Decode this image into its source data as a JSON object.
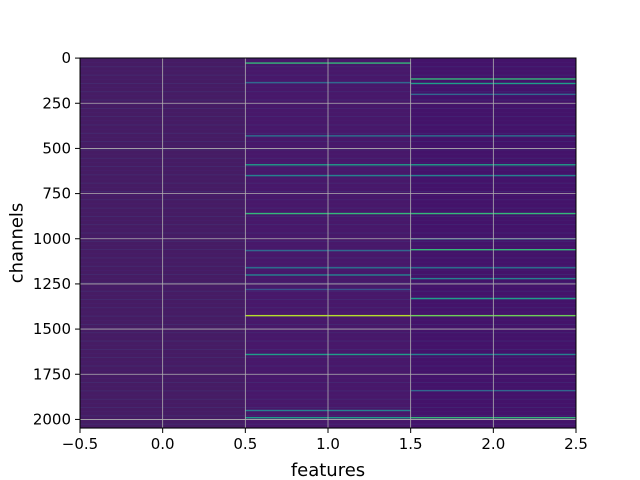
{
  "chart_data": {
    "type": "heatmap",
    "title": "",
    "xlabel": "features",
    "ylabel": "channels",
    "xlim": [
      -0.5,
      2.5
    ],
    "ylim": [
      2047.5,
      -0.5
    ],
    "y_inverted": true,
    "grid": true,
    "columns": [
      0,
      1,
      2
    ],
    "rows": 2048,
    "x_ticks": [
      -0.5,
      0.0,
      0.5,
      1.0,
      1.5,
      2.0,
      2.5
    ],
    "x_tick_labels": [
      "−0.5",
      "0.0",
      "0.5",
      "1.0",
      "1.5",
      "2.0",
      "2.5"
    ],
    "y_ticks": [
      0,
      250,
      500,
      750,
      1000,
      1250,
      1500,
      1750,
      2000
    ],
    "y_tick_labels": [
      "0",
      "250",
      "500",
      "750",
      "1000",
      "1250",
      "1500",
      "1750",
      "2000"
    ],
    "colormap": "viridis",
    "background_color": "#46206a",
    "column_base_colors": [
      "#461c64",
      "#48186a",
      "#44136a"
    ],
    "bright_rows": [
      {
        "col": 1,
        "channel": 27,
        "color": "#35b779"
      },
      {
        "col": 1,
        "channel": 135,
        "color": "#31688e"
      },
      {
        "col": 1,
        "channel": 430,
        "color": "#2c728e"
      },
      {
        "col": 1,
        "channel": 590,
        "color": "#1f9e89"
      },
      {
        "col": 1,
        "channel": 650,
        "color": "#26828e"
      },
      {
        "col": 1,
        "channel": 860,
        "color": "#35b779"
      },
      {
        "col": 1,
        "channel": 1065,
        "color": "#31688e"
      },
      {
        "col": 1,
        "channel": 1160,
        "color": "#2c728e"
      },
      {
        "col": 1,
        "channel": 1200,
        "color": "#26828e"
      },
      {
        "col": 1,
        "channel": 1280,
        "color": "#3b528b"
      },
      {
        "col": 1,
        "channel": 1425,
        "color": "#b5de2b"
      },
      {
        "col": 1,
        "channel": 1640,
        "color": "#1f9e89"
      },
      {
        "col": 1,
        "channel": 1950,
        "color": "#26828e"
      },
      {
        "col": 1,
        "channel": 1990,
        "color": "#1f9e89"
      },
      {
        "col": 2,
        "channel": 115,
        "color": "#35b779"
      },
      {
        "col": 2,
        "channel": 140,
        "color": "#1f9e89"
      },
      {
        "col": 2,
        "channel": 200,
        "color": "#31688e"
      },
      {
        "col": 2,
        "channel": 430,
        "color": "#2c728e"
      },
      {
        "col": 2,
        "channel": 590,
        "color": "#1f9e89"
      },
      {
        "col": 2,
        "channel": 650,
        "color": "#26828e"
      },
      {
        "col": 2,
        "channel": 860,
        "color": "#35b779"
      },
      {
        "col": 2,
        "channel": 1000,
        "color": "#31688e"
      },
      {
        "col": 2,
        "channel": 1060,
        "color": "#35b779"
      },
      {
        "col": 2,
        "channel": 1160,
        "color": "#2c728e"
      },
      {
        "col": 2,
        "channel": 1220,
        "color": "#26828e"
      },
      {
        "col": 2,
        "channel": 1330,
        "color": "#1f9e89"
      },
      {
        "col": 2,
        "channel": 1425,
        "color": "#6ece58"
      },
      {
        "col": 2,
        "channel": 1640,
        "color": "#26828e"
      },
      {
        "col": 2,
        "channel": 1840,
        "color": "#31688e"
      },
      {
        "col": 2,
        "channel": 1990,
        "color": "#35b779"
      }
    ]
  }
}
